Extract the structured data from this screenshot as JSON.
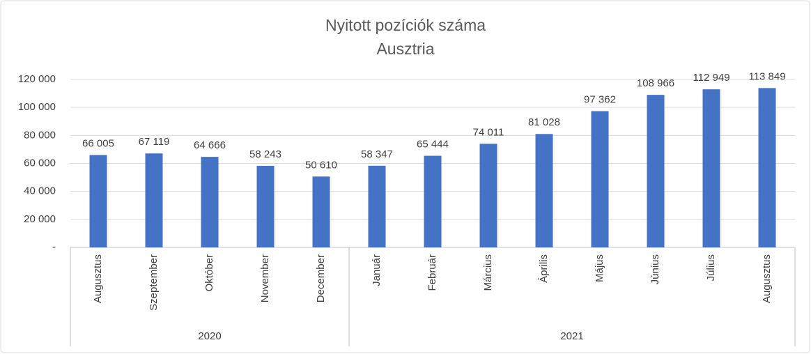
{
  "chart_data": {
    "type": "bar",
    "title": "Nyitott pozíciók száma",
    "subtitle": "Ausztria",
    "groups": [
      {
        "name": "2020",
        "categories": [
          "Augusztus",
          "Szeptember",
          "Október",
          "November",
          "December"
        ]
      },
      {
        "name": "2021",
        "categories": [
          "Január",
          "Február",
          "Március",
          "Április",
          "Május",
          "Június",
          "Július",
          "Augusztus"
        ]
      }
    ],
    "values": [
      66005,
      67119,
      64666,
      58243,
      50610,
      58347,
      65444,
      74011,
      81028,
      97362,
      108966,
      112949,
      113849
    ],
    "value_labels": [
      "66 005",
      "67 119",
      "64 666",
      "58 243",
      "50 610",
      "58 347",
      "65 444",
      "74 011",
      "81 028",
      "97 362",
      "108 966",
      "112 949",
      "113 849"
    ],
    "color": "#4472c4",
    "ylim": [
      0,
      120000
    ],
    "yticks": [
      {
        "value": 0,
        "label": "-"
      },
      {
        "value": 20000,
        "label": "20 000"
      },
      {
        "value": 40000,
        "label": "40 000"
      },
      {
        "value": 60000,
        "label": "60 000"
      },
      {
        "value": 80000,
        "label": "80 000"
      },
      {
        "value": 100000,
        "label": "100 000"
      },
      {
        "value": 120000,
        "label": "120 000"
      }
    ],
    "grid": true
  }
}
